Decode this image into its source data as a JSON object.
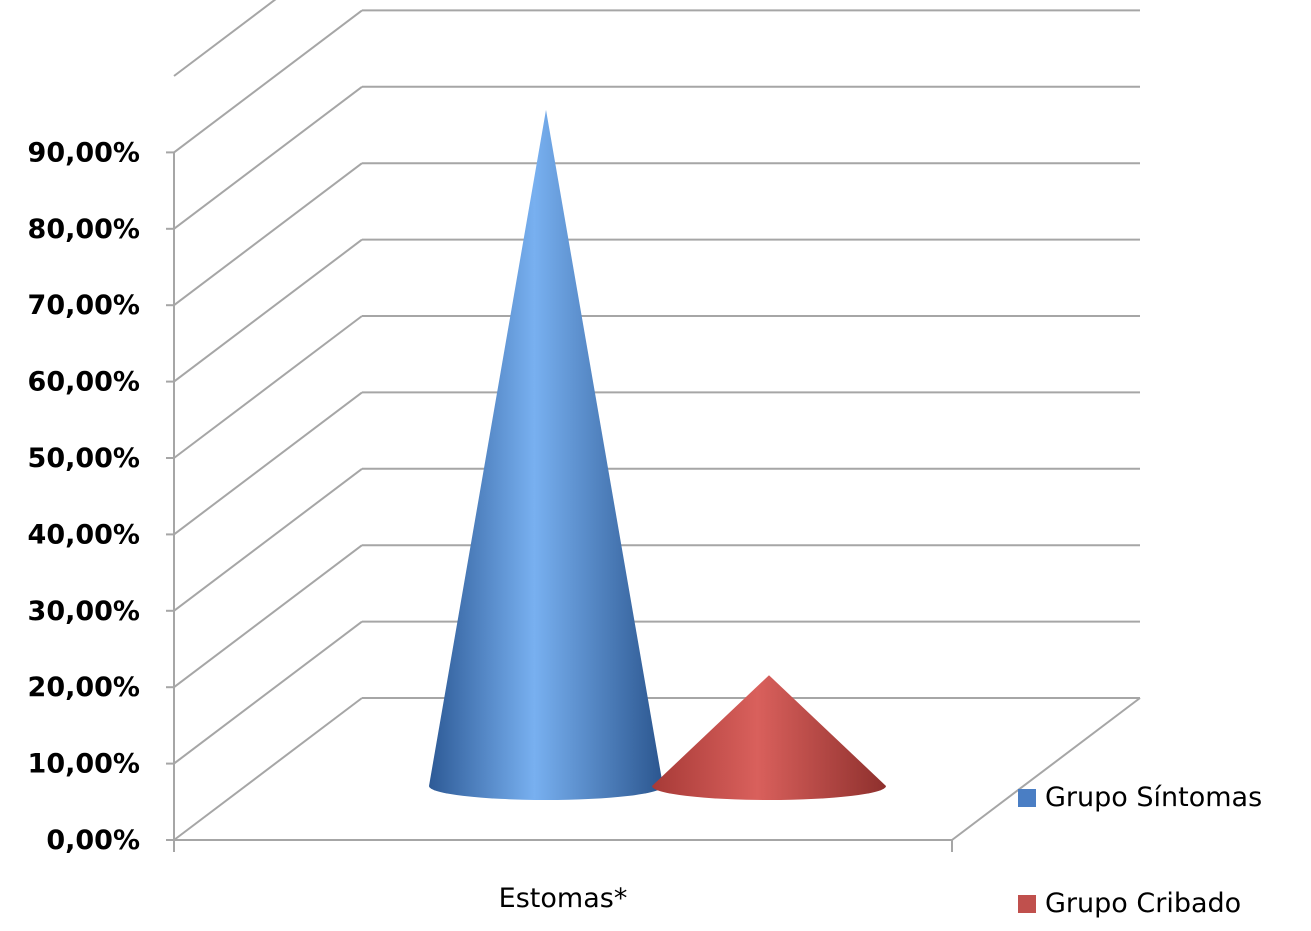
{
  "chart_data": {
    "type": "bar",
    "shape": "3d-cone",
    "categories": [
      "Estomas*"
    ],
    "series": [
      {
        "name": "Grupo Síntomas",
        "values": [
          0.94
        ],
        "color": "#4a7ec4"
      },
      {
        "name": "Grupo Cribado",
        "values": [
          0.2
        ],
        "color": "#c0504d"
      }
    ],
    "ylim": [
      0,
      0.9
    ],
    "ytick_labels": [
      "0,00%",
      "10,00%",
      "20,00%",
      "30,00%",
      "40,00%",
      "50,00%",
      "60,00%",
      "70,00%",
      "80,00%",
      "90,00%"
    ],
    "grid": true,
    "legend_position": "right",
    "title": "",
    "xlabel": "",
    "ylabel": ""
  }
}
